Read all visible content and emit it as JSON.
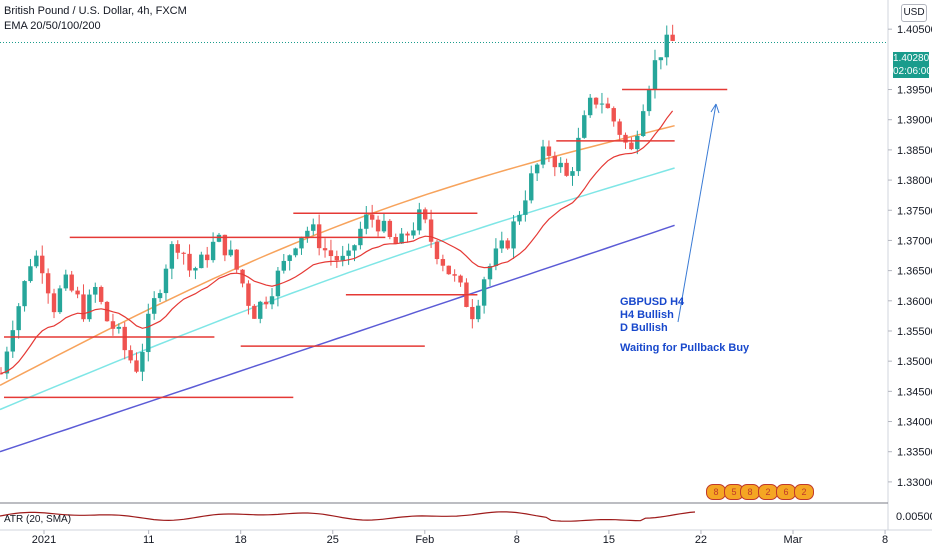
{
  "header": {
    "title": "British Pound / U.S. Dollar, 4h, FXCM",
    "indicators": "EMA 20/50/100/200"
  },
  "currency_badge": "USD",
  "price_tags": {
    "last": "1.40280",
    "countdown": "02:06:00"
  },
  "atr_label": "ATR (20, SMA)",
  "atr_value": "0.00500",
  "annotation": [
    "GBPUSD H4",
    "H4 Bullish",
    "D Bullish",
    "",
    "Waiting for Pullback Buy"
  ],
  "events": [
    "8",
    "5",
    "8",
    "2",
    "6",
    "2"
  ],
  "colors": {
    "up": "#26a69a",
    "down": "#ef5350",
    "ema20": "#e53935",
    "ema50": "#f7a35c",
    "ema100": "#7fe6e6",
    "ema200": "#5b5bd6",
    "levels": "#e53935",
    "arrow": "#3a7bd5",
    "atr": "#9e1b1b"
  },
  "chart_data": {
    "type": "candlestick",
    "symbol": "GBPUSD",
    "timeframe": "4h",
    "ylim": [
      1.327,
      1.4095
    ],
    "y_ticks": [
      "1.40500",
      "1.39500",
      "1.39000",
      "1.38500",
      "1.38000",
      "1.37500",
      "1.37000",
      "1.36500",
      "1.36000",
      "1.35500",
      "1.35000",
      "1.34500",
      "1.34000",
      "1.33500",
      "1.33000"
    ],
    "x_ticks": [
      "2021",
      "11",
      "18",
      "25",
      "Feb",
      "8",
      "15",
      "22",
      "Mar",
      "8"
    ],
    "path_points": [
      1.348,
      1.356,
      1.361,
      1.368,
      1.366,
      1.359,
      1.363,
      1.361,
      1.358,
      1.362,
      1.357,
      1.355,
      1.351,
      1.349,
      1.356,
      1.362,
      1.368,
      1.37,
      1.365,
      1.366,
      1.369,
      1.37,
      1.367,
      1.363,
      1.358,
      1.36,
      1.363,
      1.366,
      1.37,
      1.372,
      1.371,
      1.368,
      1.367,
      1.366,
      1.371,
      1.374,
      1.373,
      1.37,
      1.369,
      1.372,
      1.374,
      1.37,
      1.367,
      1.364,
      1.361,
      1.358,
      1.364,
      1.367,
      1.369,
      1.373,
      1.378,
      1.382,
      1.385,
      1.383,
      1.38,
      1.386,
      1.392,
      1.394,
      1.391,
      1.388,
      1.384,
      1.392,
      1.398,
      1.402,
      1.4028
    ],
    "levels": [
      {
        "y": 1.3705,
        "x0": "2021-01-05",
        "x1": "2021-01-29"
      },
      {
        "y": 1.354,
        "x0": "2020-12-31",
        "x1": "2021-01-16"
      },
      {
        "y": 1.344,
        "x0": "2020-12-31",
        "x1": "2021-01-22"
      },
      {
        "y": 1.3525,
        "x0": "2021-01-18",
        "x1": "2021-02-01"
      },
      {
        "y": 1.3745,
        "x0": "2021-01-22",
        "x1": "2021-02-05"
      },
      {
        "y": 1.361,
        "x0": "2021-01-26",
        "x1": "2021-02-05"
      },
      {
        "y": 1.3865,
        "x0": "2021-02-11",
        "x1": "2021-02-20"
      },
      {
        "y": 1.395,
        "x0": "2021-02-16",
        "x1": "2021-02-24"
      }
    ],
    "ema": [
      {
        "name": "EMA 200",
        "from": 1.335,
        "to": 1.3725
      },
      {
        "name": "EMA 100",
        "from": 1.342,
        "to": 1.382
      },
      {
        "name": "EMA 50",
        "from": 1.346,
        "to": 1.389
      }
    ],
    "atr": {
      "value": 0.005,
      "ylim": [
        0.002,
        0.0075
      ]
    }
  }
}
